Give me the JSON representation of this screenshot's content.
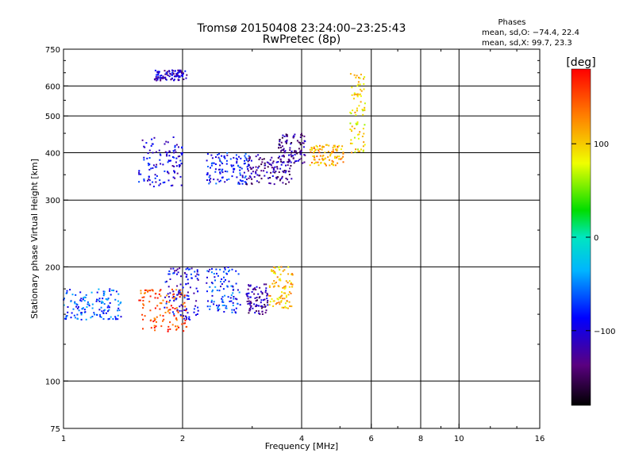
{
  "chart_data": {
    "type": "scatter",
    "title": "Tromsø 20150408 23:24:00–23:25:43",
    "subtitle": "RwPretec (8p)",
    "xlabel": "Frequency [MHz]",
    "ylabel": "Stationary phase Virtual Height [km]",
    "x_scale": "log",
    "y_scale": "log",
    "xlim": [
      1,
      16
    ],
    "ylim": [
      75,
      750
    ],
    "x_ticks": [
      "1",
      "2",
      "4",
      "6",
      "8",
      "10",
      "16"
    ],
    "y_ticks": [
      "75",
      "100",
      "200",
      "300",
      "400",
      "500",
      "600",
      "750"
    ],
    "grid": true,
    "stats": {
      "heading": "Phases",
      "line_o": "mean, sd,O: −74.4, 22.4",
      "line_x": "mean, sd,X:  99.7, 23.3"
    },
    "colorbar": {
      "label": "[deg]",
      "range": [
        -180,
        180
      ],
      "ticks": [
        "100",
        "0",
        "−100"
      ],
      "tick_values": [
        100,
        0,
        -100
      ],
      "colormap": "rainbow"
    },
    "clusters": [
      {
        "f": [
          1.55,
          2.0
        ],
        "h": [
          325,
          440
        ],
        "phase": -100
      },
      {
        "f": [
          2.3,
          2.95
        ],
        "h": [
          330,
          400
        ],
        "phase": -85
      },
      {
        "f": [
          2.9,
          3.8
        ],
        "h": [
          330,
          395
        ],
        "phase": -125
      },
      {
        "f": [
          3.5,
          4.1
        ],
        "h": [
          375,
          450
        ],
        "phase": -130
      },
      {
        "f": [
          4.2,
          5.1
        ],
        "h": [
          370,
          420
        ],
        "phase": 115
      },
      {
        "f": [
          5.3,
          5.8
        ],
        "h": [
          400,
          650
        ],
        "phase": 95
      },
      {
        "f": [
          1.7,
          2.05
        ],
        "h": [
          620,
          660
        ],
        "phase": -110
      },
      {
        "f": [
          1.55,
          2.05
        ],
        "h": [
          135,
          175
        ],
        "phase": 150
      },
      {
        "f": [
          1.8,
          2.2
        ],
        "h": [
          145,
          200
        ],
        "phase": -95
      },
      {
        "f": [
          2.3,
          2.8
        ],
        "h": [
          150,
          200
        ],
        "phase": -75
      },
      {
        "f": [
          2.9,
          3.3
        ],
        "h": [
          150,
          180
        ],
        "phase": -125
      },
      {
        "f": [
          3.3,
          3.8
        ],
        "h": [
          155,
          200
        ],
        "phase": 105
      },
      {
        "f": [
          1.0,
          1.4
        ],
        "h": [
          145,
          175
        ],
        "phase": -65
      }
    ]
  }
}
